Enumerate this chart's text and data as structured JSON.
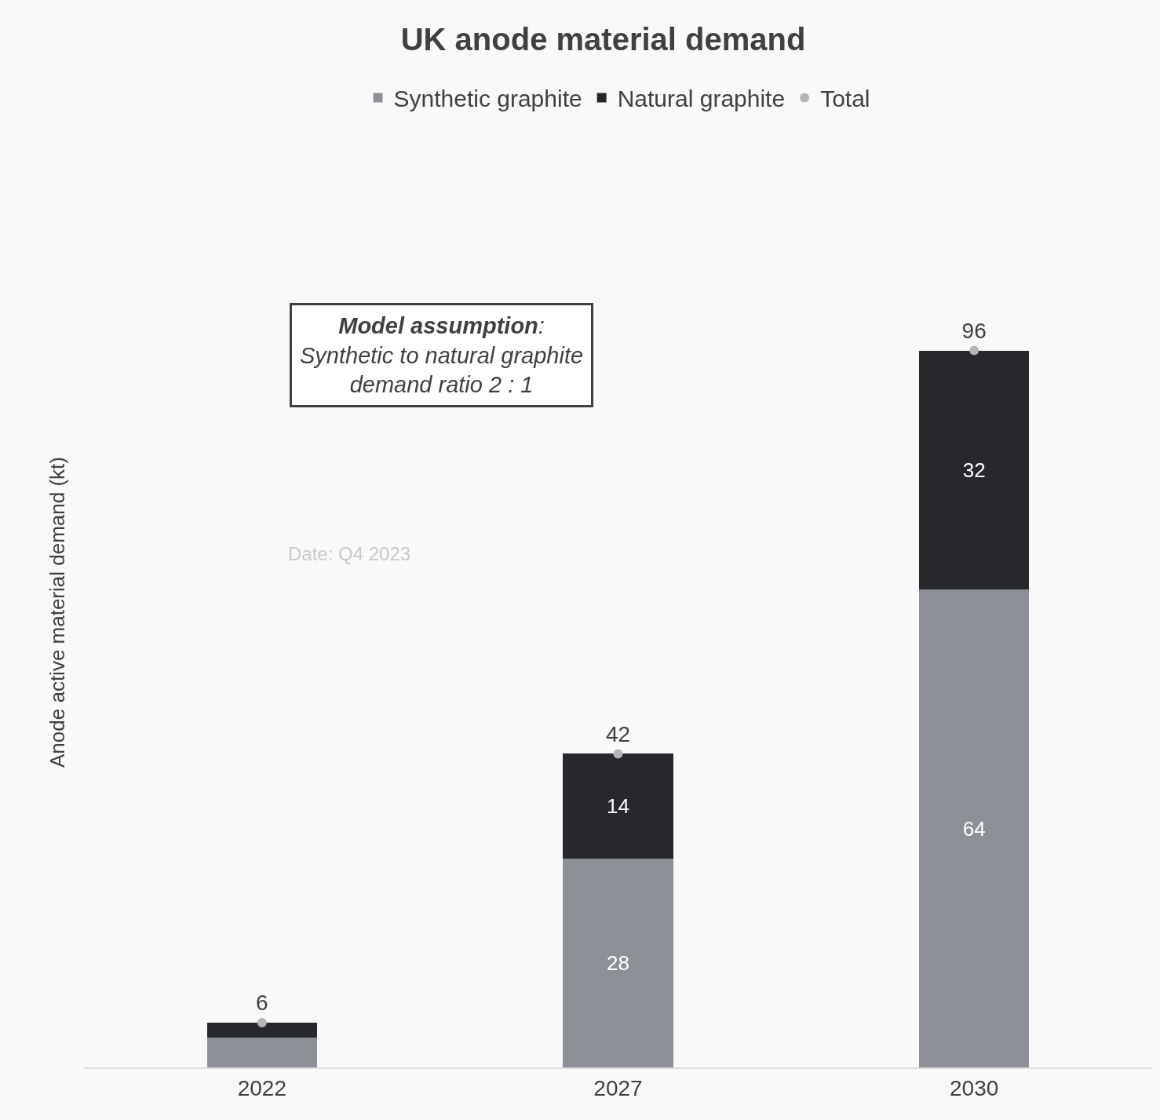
{
  "chart_data": {
    "type": "bar",
    "title": "UK anode material demand",
    "ylabel": "Anode active material demand (kt)",
    "categories": [
      "2022",
      "2027",
      "2030"
    ],
    "stacked": true,
    "legend": "top",
    "grid": false,
    "series": [
      {
        "name": "Synthetic graphite",
        "color": "#8e9097",
        "values": [
          4,
          28,
          64
        ],
        "value_labels": [
          null,
          "28",
          "64"
        ]
      },
      {
        "name": "Natural graphite",
        "color": "#27282c",
        "values": [
          2,
          14,
          32
        ],
        "value_labels": [
          null,
          "14",
          "32"
        ]
      },
      {
        "name": "Total",
        "type": "scatter",
        "color": "#b4b5b9",
        "values": [
          6,
          42,
          96
        ],
        "marker": "circle",
        "data_labels": true
      }
    ],
    "annotations": [
      "Model assumption:\nSynthetic to natural graphite\ndemand ratio 2 : 1",
      "Date: Q4 2023"
    ]
  }
}
